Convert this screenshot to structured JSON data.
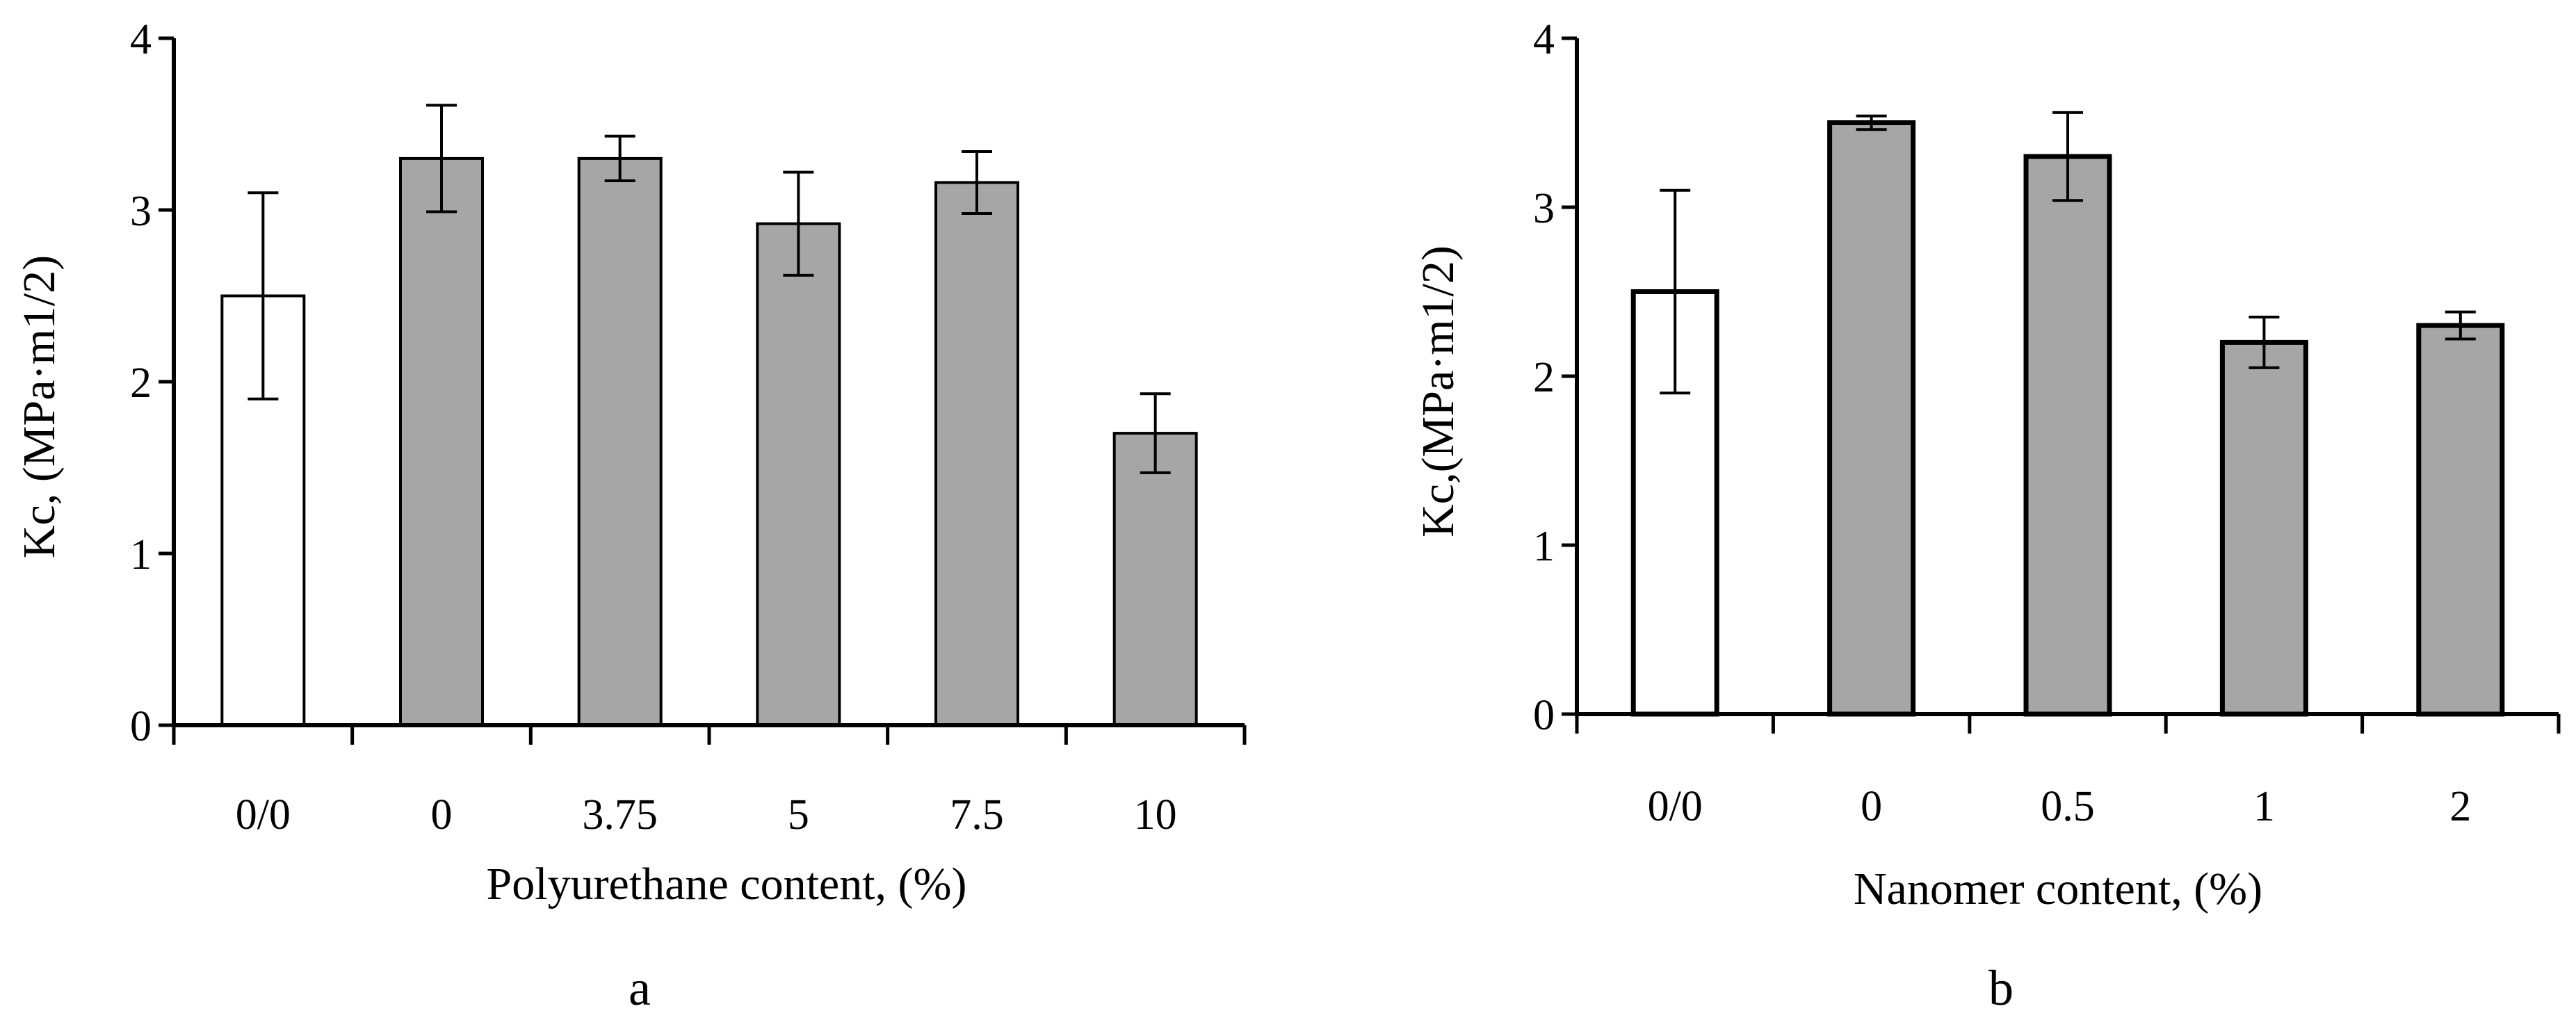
{
  "figure": {
    "panels": [
      "a",
      "b"
    ]
  },
  "colors": {
    "control_fill": "#ffffff",
    "sample_fill": "#a6a6a6",
    "stroke": "#000000"
  },
  "chart_data": [
    {
      "type": "bar",
      "panel_label": "a",
      "categories": [
        "0/0",
        "0",
        "3.75",
        "5",
        "7.5",
        "10"
      ],
      "values": [
        2.5,
        3.3,
        3.3,
        2.92,
        3.16,
        1.7
      ],
      "error": [
        0.6,
        0.31,
        0.13,
        0.3,
        0.18,
        0.23
      ],
      "fill_kind": [
        "control",
        "sample",
        "sample",
        "sample",
        "sample",
        "sample"
      ],
      "xlabel": "Polyurethane content, (%)",
      "ylabel": "Kc, (MPa·m1/2)",
      "ylim": [
        0,
        4
      ],
      "yticks": [
        0,
        1,
        2,
        3,
        4
      ],
      "grid": false,
      "legend": "none"
    },
    {
      "type": "bar",
      "panel_label": "b",
      "categories": [
        "0/0",
        "0",
        "0.5",
        "1",
        "2"
      ],
      "values": [
        2.5,
        3.5,
        3.3,
        2.2,
        2.3
      ],
      "error": [
        0.6,
        0.04,
        0.26,
        0.15,
        0.08
      ],
      "fill_kind": [
        "control",
        "sample",
        "sample",
        "sample",
        "sample"
      ],
      "xlabel": "Nanomer content, (%)",
      "ylabel": "Kc,(MPa·m1/2)",
      "ylim": [
        0,
        4
      ],
      "yticks": [
        0,
        1,
        2,
        3,
        4
      ],
      "grid": false,
      "legend": "none"
    }
  ]
}
